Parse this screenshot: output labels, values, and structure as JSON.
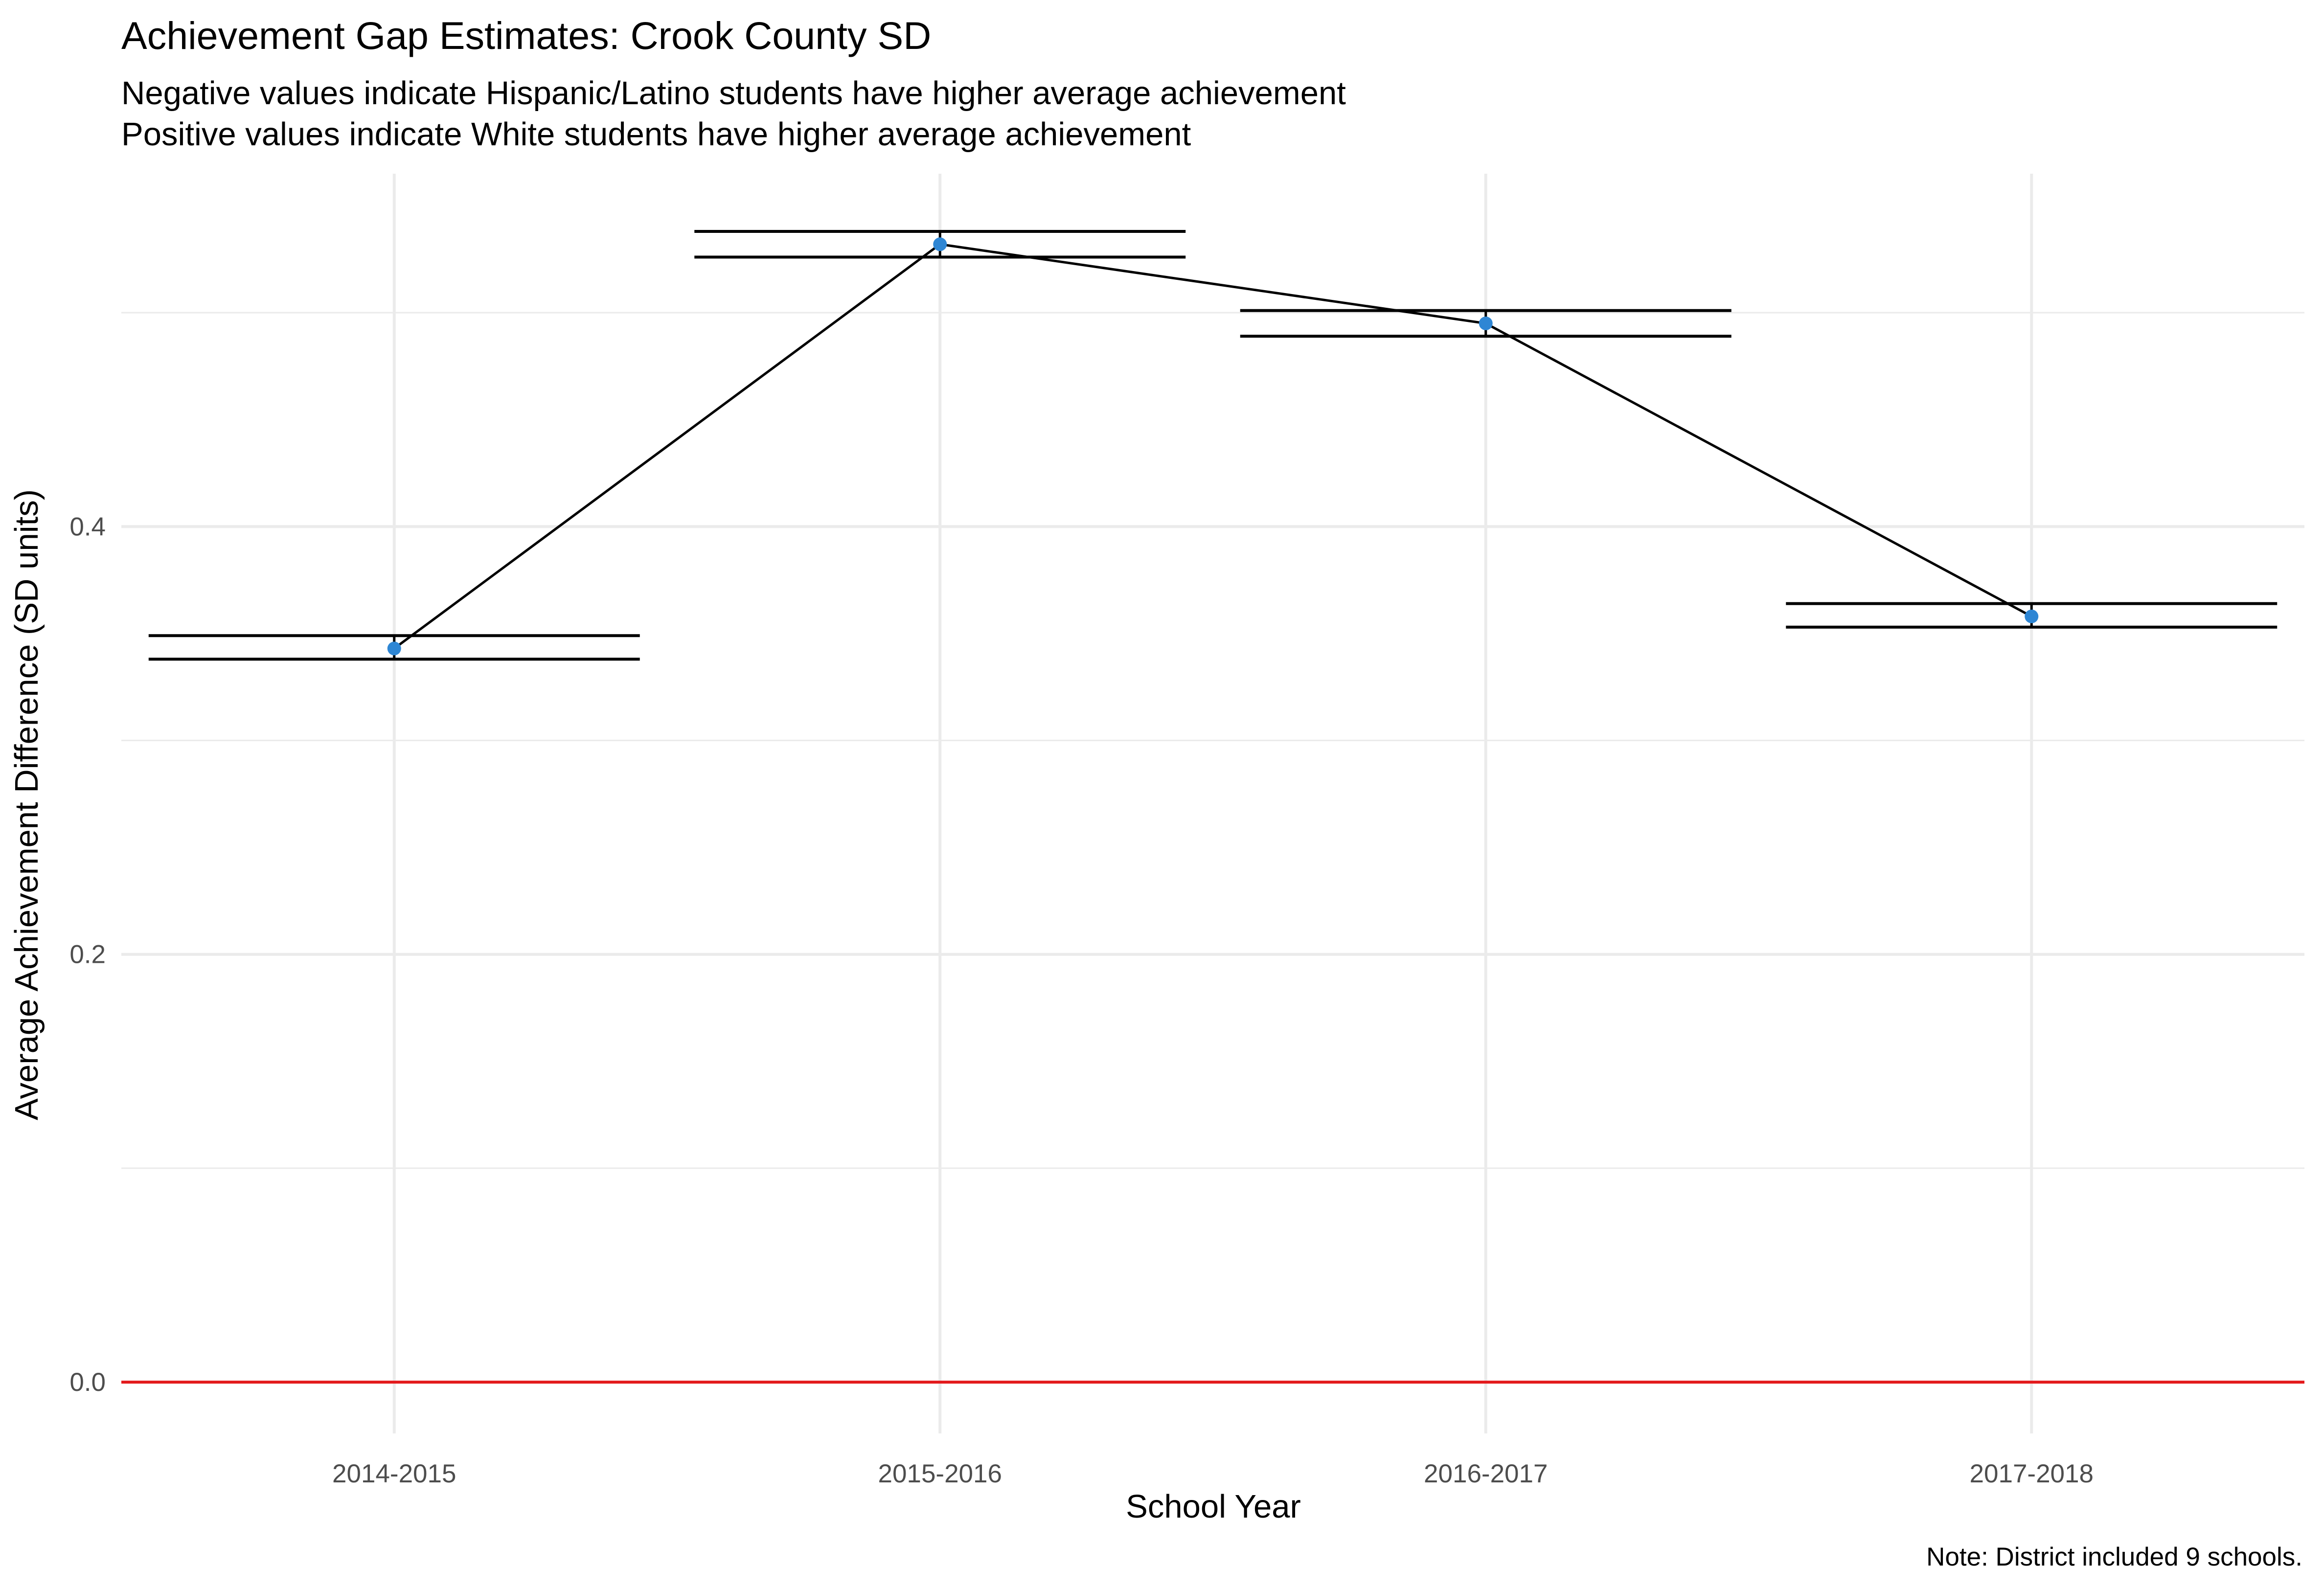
{
  "chart_data": {
    "type": "line",
    "title": "Achievement Gap Estimates: Crook County SD",
    "subtitle_lines": [
      "Negative values indicate Hispanic/Latino students have higher average achievement",
      "Positive values indicate White students have higher average achievement"
    ],
    "xlabel": "School Year",
    "ylabel": "Average Achievement Difference (SD units)",
    "caption": "Note: District included 9 schools.",
    "categories": [
      "2014-2015",
      "2015-2016",
      "2016-2017",
      "2017-2018"
    ],
    "series": [
      {
        "values": [
          0.343,
          0.532,
          0.495,
          0.358
        ],
        "lower": [
          0.338,
          0.526,
          0.489,
          0.353
        ],
        "upper": [
          0.349,
          0.538,
          0.501,
          0.364
        ]
      }
    ],
    "y_ticks": [
      0.0,
      0.2,
      0.4
    ],
    "y_tick_labels": [
      "0.0",
      "0.2",
      "0.4"
    ],
    "ylim": [
      -0.024,
      0.565
    ],
    "reference_line": 0.0,
    "grid": true,
    "legend": "none",
    "colors": {
      "point": "#2e86d4",
      "line": "#000000",
      "errorbar": "#000000",
      "reference_line": "#e31a1c",
      "grid": "#ebebeb",
      "tick_label": "#4d4d4d"
    }
  }
}
